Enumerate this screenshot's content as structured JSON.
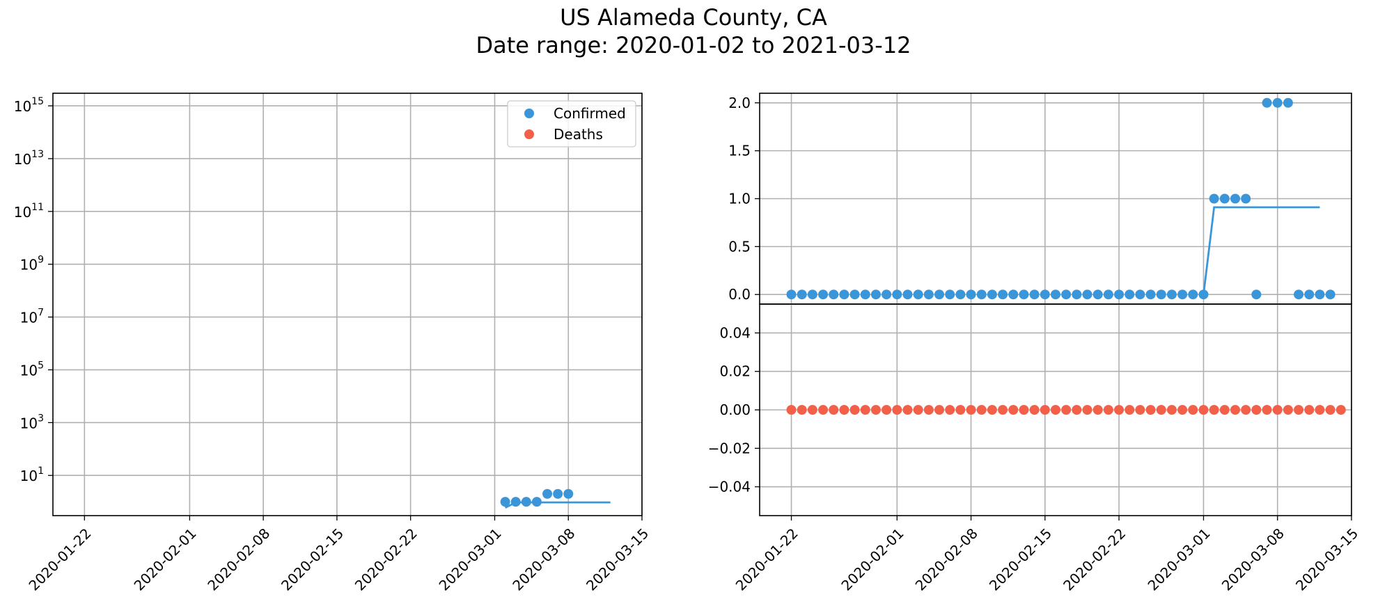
{
  "figure": {
    "title_line1": "US Alameda County, CA",
    "title_line2": "Date range: 2020-01-02 to 2021-03-12"
  },
  "chart_data": [
    {
      "type": "scatter",
      "panel": "left",
      "yscale": "log",
      "ylim": [
        "~3e-01",
        "~3e+15"
      ],
      "xlim": [
        "2020-01-19",
        "2020-03-15"
      ],
      "x_ticks": [
        "2020-01-22",
        "2020-02-01",
        "2020-02-08",
        "2020-02-15",
        "2020-02-22",
        "2020-03-01",
        "2020-03-08",
        "2020-03-15"
      ],
      "y_ticks": [
        {
          "value": 10,
          "label": "10",
          "exp": "1"
        },
        {
          "value": 1000,
          "label": "10",
          "exp": "3"
        },
        {
          "value": 100000,
          "label": "10",
          "exp": "5"
        },
        {
          "value": 10000000,
          "label": "10",
          "exp": "7"
        },
        {
          "value": 1000000000,
          "label": "10",
          "exp": "9"
        },
        {
          "value": 100000000000,
          "label": "10",
          "exp": "11"
        },
        {
          "value": 10000000000000,
          "label": "10",
          "exp": "13"
        },
        {
          "value": 1000000000000000,
          "label": "10",
          "exp": "15"
        }
      ],
      "grid": true,
      "legend": {
        "position": "top-right",
        "entries": [
          {
            "name": "Confirmed",
            "color": "#3a96d9"
          },
          {
            "name": "Deaths",
            "color": "#f2604a"
          }
        ]
      },
      "series": [
        {
          "name": "Confirmed",
          "color": "#3a96d9",
          "points": [
            {
              "x": "2020-03-02",
              "y": 1
            },
            {
              "x": "2020-03-03",
              "y": 1
            },
            {
              "x": "2020-03-04",
              "y": 1
            },
            {
              "x": "2020-03-05",
              "y": 1
            },
            {
              "x": "2020-03-06",
              "y": 2
            },
            {
              "x": "2020-03-07",
              "y": 2
            },
            {
              "x": "2020-03-08",
              "y": 2
            }
          ],
          "trend": [
            {
              "x": "2020-03-02",
              "y": 0.6
            },
            {
              "x": "2020-03-03",
              "y": 0.95
            },
            {
              "x": "2020-03-12",
              "y": 0.95
            }
          ]
        }
      ]
    },
    {
      "type": "scatter",
      "panel": "right-top",
      "ylim": [
        -0.1,
        2.1
      ],
      "xlim": [
        "2020-01-19",
        "2020-03-15"
      ],
      "y_ticks": [
        0.0,
        0.5,
        1.0,
        1.5,
        2.0
      ],
      "y_tick_labels": [
        "0.0",
        "0.5",
        "1.0",
        "1.5",
        "2.0"
      ],
      "grid": true,
      "series": [
        {
          "name": "Confirmed",
          "color": "#3a96d9",
          "start": "2020-01-22",
          "values": [
            0,
            0,
            0,
            0,
            0,
            0,
            0,
            0,
            0,
            0,
            0,
            0,
            0,
            0,
            0,
            0,
            0,
            0,
            0,
            0,
            0,
            0,
            0,
            0,
            0,
            0,
            0,
            0,
            0,
            0,
            0,
            0,
            0,
            0,
            0,
            0,
            0,
            0,
            0,
            0,
            1,
            1,
            1,
            1,
            0,
            2,
            2,
            2,
            0,
            0,
            0,
            0
          ],
          "trend": [
            {
              "x": "2020-03-01",
              "y": 0.0
            },
            {
              "x": "2020-03-02",
              "y": 0.91
            },
            {
              "x": "2020-03-12",
              "y": 0.91
            }
          ]
        }
      ]
    },
    {
      "type": "scatter",
      "panel": "right-bottom",
      "ylim": [
        -0.055,
        0.055
      ],
      "xlim": [
        "2020-01-19",
        "2020-03-15"
      ],
      "x_ticks": [
        "2020-01-22",
        "2020-02-01",
        "2020-02-08",
        "2020-02-15",
        "2020-02-22",
        "2020-03-01",
        "2020-03-08",
        "2020-03-15"
      ],
      "y_ticks": [
        -0.04,
        -0.02,
        0.0,
        0.02,
        0.04
      ],
      "y_tick_labels": [
        "−0.04",
        "−0.02",
        "0.00",
        "0.02",
        "0.04"
      ],
      "grid": true,
      "series": [
        {
          "name": "Deaths",
          "color": "#f2604a",
          "start": "2020-01-22",
          "values": [
            0,
            0,
            0,
            0,
            0,
            0,
            0,
            0,
            0,
            0,
            0,
            0,
            0,
            0,
            0,
            0,
            0,
            0,
            0,
            0,
            0,
            0,
            0,
            0,
            0,
            0,
            0,
            0,
            0,
            0,
            0,
            0,
            0,
            0,
            0,
            0,
            0,
            0,
            0,
            0,
            0,
            0,
            0,
            0,
            0,
            0,
            0,
            0,
            0,
            0,
            0,
            0,
            0
          ]
        }
      ]
    }
  ]
}
